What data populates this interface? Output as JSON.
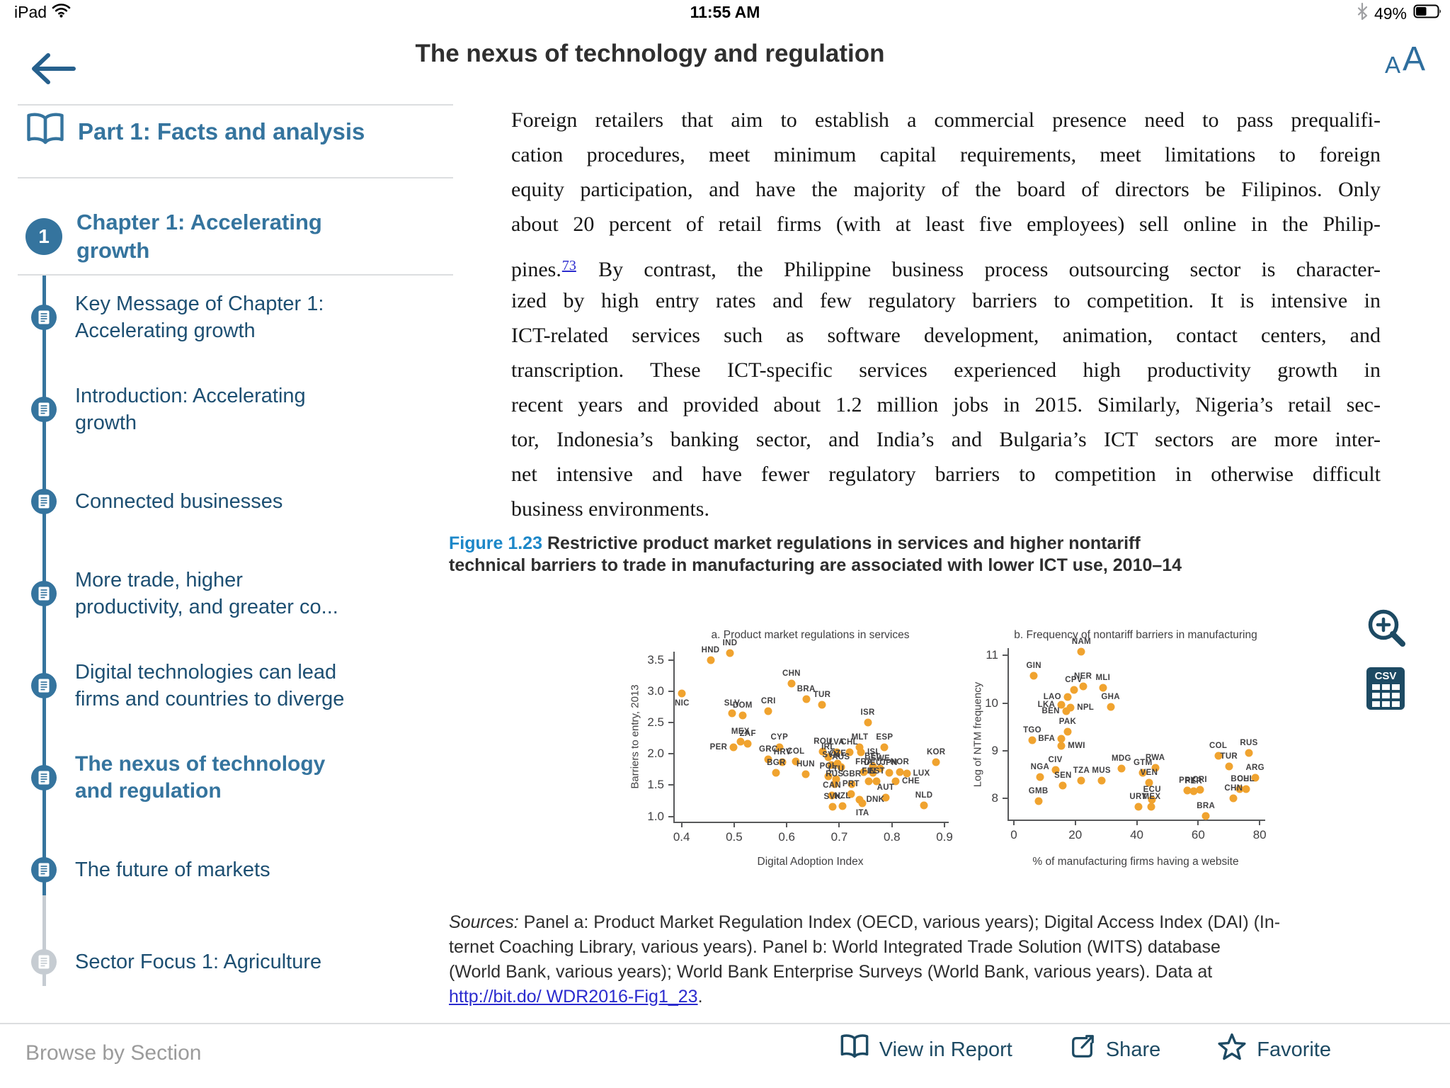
{
  "status_bar": {
    "device": "iPad",
    "time": "11:55 AM",
    "battery": "49%"
  },
  "header": {
    "title": "The nexus of technology and regulation",
    "text_size_small": "A",
    "text_size_large": "A"
  },
  "icons": {
    "back": "arrow-left",
    "wifi": "wifi",
    "bluetooth": "bluetooth",
    "battery": "battery-half",
    "part": "open-book",
    "section": "document",
    "zoom": "magnifier-plus",
    "csv": "csv-table",
    "view": "open-book",
    "share": "box-arrow-up-right",
    "favorite": "star-outline"
  },
  "colors": {
    "accent_blue": "#35749E",
    "item_navy": "#1D4F72",
    "figure_blue": "#1C87C8",
    "link_blue": "#2B2BCE",
    "dot_orange": "#F0A32F",
    "muted_gray": "#C6CCD2"
  },
  "sidebar": {
    "part": "Part 1: Facts and analysis",
    "chapter_number": "1",
    "chapter": "Chapter 1: Accelerating\ngrowth",
    "items": [
      {
        "label": "Key Message of Chapter 1:\nAccelerating growth"
      },
      {
        "label": "Introduction: Accelerating\ngrowth"
      },
      {
        "label": "Connected businesses"
      },
      {
        "label": "More trade, higher\nproductivity, and greater co..."
      },
      {
        "label": "Digital technologies can lead\nfirms and countries to diverge"
      },
      {
        "label": "The nexus of technology\nand regulation",
        "active": true
      },
      {
        "label": "The future of markets"
      },
      {
        "label": "Sector Focus 1: Agriculture",
        "muted": true
      }
    ]
  },
  "article": {
    "paragraph_lines": [
      "Foreign retailers that aim to establish a commercial presence need to pass prequalifi-",
      "cation procedures, meet minimum capital requirements, meet limitations to foreign",
      "equity participation, and have the majority of the board of directors be Filipinos. Only",
      "about 20 percent of retail firms (with at least five employees) sell online in the Philip-",
      {
        "pre": "pines.",
        "sup": "73",
        "post": " By contrast, the Philippine business process outsourcing sector is character-",
        "gap": true
      },
      "ized by high entry rates and few regulatory barriers to competition. It is intensive in",
      "ICT-related services such as software development, animation, contact centers, and",
      "transcription. These ICT-specific services experienced high productivity growth in",
      "recent years and provided about 1.2 million jobs in 2015. Similarly, Nigeria’s retail sec-",
      "tor, Indonesia’s banking sector, and India’s and Bulgaria’s ICT sectors are more inter-",
      "net intensive and have fewer regulatory barriers to competition in otherwise difficult",
      "business environments."
    ],
    "figure_caption": {
      "number": "Figure 1.23",
      "line1": "Restrictive product market regulations in services and higher nontariff",
      "line2": "technical barriers to trade in manufacturing are associated with lower ICT use, 2010–14"
    },
    "sources": {
      "label": "Sources:",
      "lines": [
        "Panel a: Product Market Regulation Index (OECD, various years); Digital Access Index (DAI) (In-",
        "ternet Coaching Library, various years). Panel b: World Integrated Trade Solution (WITS) database",
        "(World Bank, various years); World Bank Enterprise Surveys (World Bank, various years). Data at"
      ],
      "link": "http://bit.do/ WDR2016-Fig1_23",
      "after_link": "."
    }
  },
  "chart_data": [
    {
      "type": "scatter",
      "panel": "a",
      "title": "a. Product market regulations in services",
      "xlabel": "Digital Adoption Index",
      "ylabel": "Barriers to entry, 2013",
      "xlim": [
        0.387,
        0.908
      ],
      "ylim": [
        0.917,
        3.63
      ],
      "xticks": [
        [
          0.4,
          "0.4"
        ],
        [
          0.5,
          "0.5"
        ],
        [
          0.6,
          "0.6"
        ],
        [
          0.7,
          "0.7"
        ],
        [
          0.8,
          "0.8"
        ],
        [
          0.9,
          "0.9"
        ]
      ],
      "yticks": [
        [
          1,
          "1.0"
        ],
        [
          1.5,
          "1.5"
        ],
        [
          2,
          "2.0"
        ],
        [
          2.5,
          "2.5"
        ],
        [
          3,
          "3.0"
        ],
        [
          3.5,
          "3.5"
        ]
      ],
      "dot_color": "#F0A32F",
      "grid": false,
      "points": [
        [
          "NIC",
          0.401,
          2.96,
          "b"
        ],
        [
          "HND",
          0.455,
          3.49,
          "a"
        ],
        [
          "IND",
          0.492,
          3.61,
          "a"
        ],
        [
          "SLV",
          0.496,
          2.65,
          "a"
        ],
        [
          "DOM",
          0.516,
          2.61,
          "a"
        ],
        [
          "CRI",
          0.565,
          2.68,
          "a"
        ],
        [
          "CHN",
          0.609,
          3.12,
          "a"
        ],
        [
          "BRA",
          0.637,
          2.87,
          "a"
        ],
        [
          "TUR",
          0.667,
          2.78,
          "a"
        ],
        [
          "MEX",
          0.512,
          2.19,
          "a"
        ],
        [
          "ZAF",
          0.526,
          2.16,
          "a"
        ],
        [
          "PER",
          0.499,
          2.1,
          "l"
        ],
        [
          "CYP",
          0.586,
          2.1,
          "a"
        ],
        [
          "GRC",
          0.565,
          1.91,
          "a"
        ],
        [
          "HRV",
          0.592,
          1.87,
          "a"
        ],
        [
          "COL",
          0.617,
          1.88,
          "a"
        ],
        [
          "BGR",
          0.58,
          1.7,
          "a"
        ],
        [
          "HUN",
          0.636,
          1.68,
          "a"
        ],
        [
          "ROU",
          0.669,
          2.04,
          "a"
        ],
        [
          "LVA",
          0.695,
          2.02,
          "a"
        ],
        [
          "CHL",
          0.719,
          2.03,
          "a"
        ],
        [
          "MLT",
          0.739,
          2.1,
          "a"
        ],
        [
          "ISL",
          0.741,
          2.03,
          "r"
        ],
        [
          "ISR",
          0.754,
          2.5,
          "a"
        ],
        [
          "ESP",
          0.786,
          2.1,
          "a"
        ],
        [
          "IRL",
          0.679,
          1.95,
          "a"
        ],
        [
          "SVN",
          0.684,
          1.82,
          "a"
        ],
        [
          "CZE",
          0.697,
          1.84,
          "a"
        ],
        [
          "AUS",
          0.703,
          1.79,
          "a"
        ],
        [
          "POL",
          0.679,
          1.64,
          "a"
        ],
        [
          "LTU",
          0.694,
          1.6,
          "a"
        ],
        [
          "RUS",
          0.691,
          1.52,
          "a"
        ],
        [
          "GBR",
          0.724,
          1.52,
          "a"
        ],
        [
          "FRA",
          0.747,
          1.71,
          "a"
        ],
        [
          "DEU",
          0.764,
          1.7,
          "a"
        ],
        [
          "BEL",
          0.764,
          1.8,
          "a"
        ],
        [
          "SWE",
          0.778,
          1.77,
          "a"
        ],
        [
          "JPN",
          0.795,
          1.7,
          "a"
        ],
        [
          "NOR",
          0.815,
          1.71,
          "a"
        ],
        [
          "LUX",
          0.828,
          1.69,
          "r"
        ],
        [
          "FIN",
          0.756,
          1.56,
          "a"
        ],
        [
          "EST",
          0.771,
          1.56,
          "a"
        ],
        [
          "CHE",
          0.807,
          1.56,
          "r"
        ],
        [
          "KOR",
          0.884,
          1.87,
          "a"
        ],
        [
          "CAN",
          0.686,
          1.33,
          "a"
        ],
        [
          "PRT",
          0.722,
          1.36,
          "a"
        ],
        [
          "DNK",
          0.739,
          1.27,
          "r"
        ],
        [
          "SVK",
          0.687,
          1.15,
          "a"
        ],
        [
          "NZL",
          0.706,
          1.17,
          "a"
        ],
        [
          "ITA",
          0.744,
          1.21,
          "b"
        ],
        [
          "AUT",
          0.788,
          1.3,
          "a"
        ],
        [
          "NLD",
          0.861,
          1.18,
          "a"
        ]
      ]
    },
    {
      "type": "scatter",
      "panel": "b",
      "title": "b. Frequency of nontariff barriers in manufacturing",
      "xlabel": "% of manufacturing firms having a website",
      "ylabel": "Log of NTM frequency",
      "xlim": [
        -1.6,
        81.8
      ],
      "ylim": [
        7.56,
        11.15
      ],
      "xticks": [
        [
          0,
          "0"
        ],
        [
          20,
          "20"
        ],
        [
          40,
          "40"
        ],
        [
          60,
          "60"
        ],
        [
          80,
          "80"
        ]
      ],
      "yticks": [
        [
          8,
          "8"
        ],
        [
          9,
          "9"
        ],
        [
          10,
          "10"
        ],
        [
          11,
          "11"
        ]
      ],
      "dot_color": "#F0A32F",
      "grid": false,
      "points": [
        [
          "NAM",
          22,
          11.08,
          "a"
        ],
        [
          "GIN",
          6.5,
          10.57,
          "a"
        ],
        [
          "CPV",
          19.5,
          10.28,
          "a"
        ],
        [
          "NER",
          22.5,
          10.35,
          "a"
        ],
        [
          "LAO",
          17.5,
          10.12,
          "l"
        ],
        [
          "LKA",
          15.5,
          9.97,
          "l"
        ],
        [
          "NPL",
          18.5,
          9.9,
          "r"
        ],
        [
          "BEN",
          17,
          9.83,
          "l"
        ],
        [
          "MLI",
          29,
          10.32,
          "a"
        ],
        [
          "GHA",
          31.5,
          9.92,
          "a"
        ],
        [
          "PAK",
          17.5,
          9.4,
          "a"
        ],
        [
          "BFA",
          15.5,
          9.25,
          "l"
        ],
        [
          "MWI",
          15.5,
          9.1,
          "r"
        ],
        [
          "TGO",
          6,
          9.22,
          "a"
        ],
        [
          "CIV",
          13.5,
          8.6,
          "a"
        ],
        [
          "NGA",
          8.5,
          8.45,
          "a"
        ],
        [
          "SEN",
          16,
          8.27,
          "a"
        ],
        [
          "GMB",
          8,
          7.95,
          "a"
        ],
        [
          "TZA",
          22,
          8.38,
          "a"
        ],
        [
          "MUS",
          28.5,
          8.38,
          "a"
        ],
        [
          "MDG",
          35,
          8.63,
          "a"
        ],
        [
          "GTM",
          42,
          8.54,
          "a"
        ],
        [
          "RWA",
          46,
          8.64,
          "a"
        ],
        [
          "VEN",
          44,
          8.33,
          "a"
        ],
        [
          "ECU",
          45,
          7.98,
          "a"
        ],
        [
          "URY",
          40.5,
          7.82,
          "a"
        ],
        [
          "MEX",
          44.8,
          7.82,
          "a"
        ],
        [
          "PRY",
          56.5,
          8.17,
          "a"
        ],
        [
          "PER",
          58.5,
          8.16,
          "a"
        ],
        [
          "CRI",
          60.5,
          8.19,
          "a"
        ],
        [
          "COL",
          66.5,
          8.9,
          "a"
        ],
        [
          "TUR",
          70,
          8.68,
          "a"
        ],
        [
          "RUS",
          76.5,
          8.95,
          "a"
        ],
        [
          "BOL",
          73.5,
          8.2,
          "a"
        ],
        [
          "CHL",
          75.5,
          8.2,
          "a"
        ],
        [
          "CHN",
          71.5,
          8.0,
          "a"
        ],
        [
          "ARG",
          78.5,
          8.43,
          "a"
        ],
        [
          "BRA",
          62.5,
          7.63,
          "a"
        ]
      ]
    }
  ],
  "footer": {
    "browse": "Browse by Section",
    "view_in_report": "View in Report",
    "share": "Share",
    "favorite": "Favorite"
  }
}
